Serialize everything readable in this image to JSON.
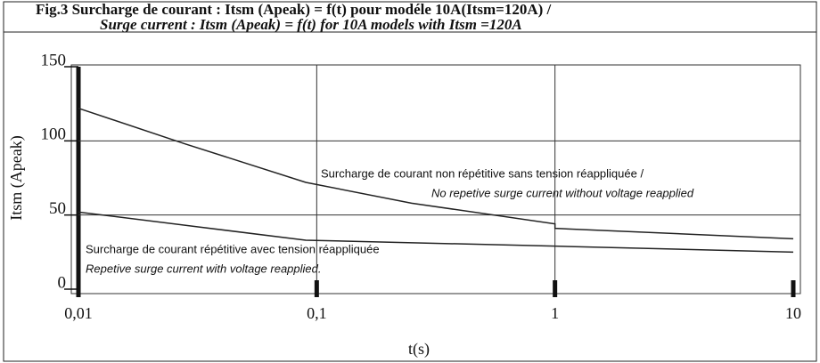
{
  "chart_data": {
    "type": "line",
    "title": "Fig.3  Surcharge de courant : Itsm (Apeak) = f(t) pour modéle 10A(Itsm=120A) /",
    "subtitle": "Surge current  : Itsm (Apeak) = f(t)  for 10A models with Itsm =120A",
    "xlabel": "t(s)",
    "ylabel": "Itsm (Apeak)",
    "xscale": "log",
    "xlim": [
      0.01,
      10
    ],
    "ylim": [
      0,
      150
    ],
    "xticks": [
      {
        "value": 0.01,
        "label": "0,01"
      },
      {
        "value": 0.1,
        "label": "0,1"
      },
      1,
      10
    ],
    "yticks": [
      0,
      50,
      100,
      150
    ],
    "grid": true,
    "series": [
      {
        "name": "Surcharge de courant non répétitive sans tension réappliquée /",
        "color": "#222222",
        "x": [
          0.01,
          0.028,
          0.09,
          0.25,
          1,
          1,
          10
        ],
        "values": [
          122,
          98,
          72,
          58,
          44,
          41,
          34
        ]
      },
      {
        "name": "Surcharge de courant répétitive avec tension réappliquée",
        "color": "#222222",
        "x": [
          0.01,
          0.09,
          1,
          10
        ],
        "values": [
          52,
          33,
          29,
          25
        ]
      }
    ],
    "annotations": [
      "No repetive surge current without voltage reapplied",
      "Repetive surge current with voltage reapplied."
    ]
  }
}
